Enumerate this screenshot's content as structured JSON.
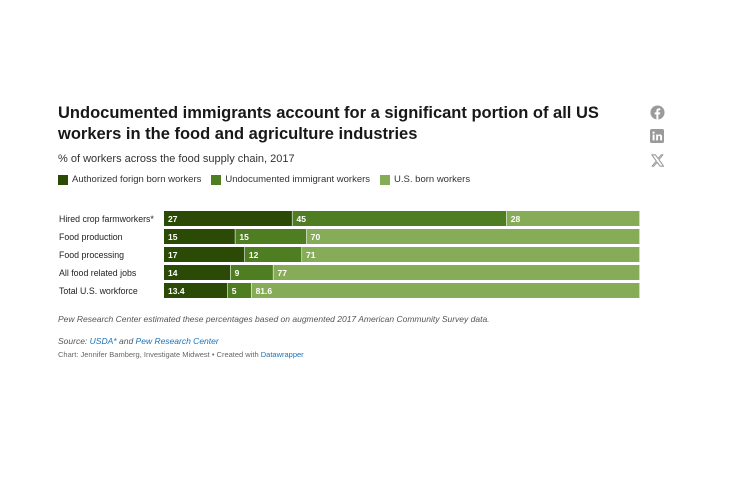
{
  "chart_data": {
    "type": "bar",
    "stacked": true,
    "orientation": "horizontal",
    "title": "Undocumented immigrants account for a significant portion of all US workers in the food and agriculture industries",
    "subtitle": "% of workers across the food supply chain, 2017",
    "categories": [
      "Hired crop farmworkers*",
      "Food production",
      "Food processing",
      "All food related jobs",
      "Total U.S. workforce"
    ],
    "series": [
      {
        "name": "Authorized forign born workers",
        "color": "#2b4a06",
        "values": [
          27,
          15,
          17,
          14,
          13.4
        ]
      },
      {
        "name": "Undocumented immigrant workers",
        "color": "#4f7d22",
        "values": [
          45,
          15,
          12,
          9,
          5
        ]
      },
      {
        "name": "U.S. born workers",
        "color": "#86ac58",
        "values": [
          28,
          70,
          71,
          77,
          81.6
        ]
      }
    ],
    "value_labels": [
      [
        "27",
        "45",
        "28"
      ],
      [
        "15",
        "15",
        "70"
      ],
      [
        "17",
        "12",
        "71"
      ],
      [
        "14",
        "9",
        "77"
      ],
      [
        "13.4",
        "5",
        "81.6"
      ]
    ],
    "xlim": [
      0,
      100
    ],
    "legend_position": "top-left",
    "grid": false
  },
  "notes": {
    "note": "Pew Research Center estimated these percentages based on augmented 2017 American Community Survey data.",
    "source_prefix": "Source:",
    "source_link1": "USDA*",
    "source_and": "and",
    "source_link2": "Pew Research Center",
    "credit_text": "Chart: Jennifer Bamberg, Investigate Midwest • Created with",
    "credit_link": "Datawrapper"
  },
  "share": {
    "icons": [
      "facebook-icon",
      "linkedin-icon",
      "x-icon"
    ],
    "icon_color": "#9a9a9a"
  }
}
